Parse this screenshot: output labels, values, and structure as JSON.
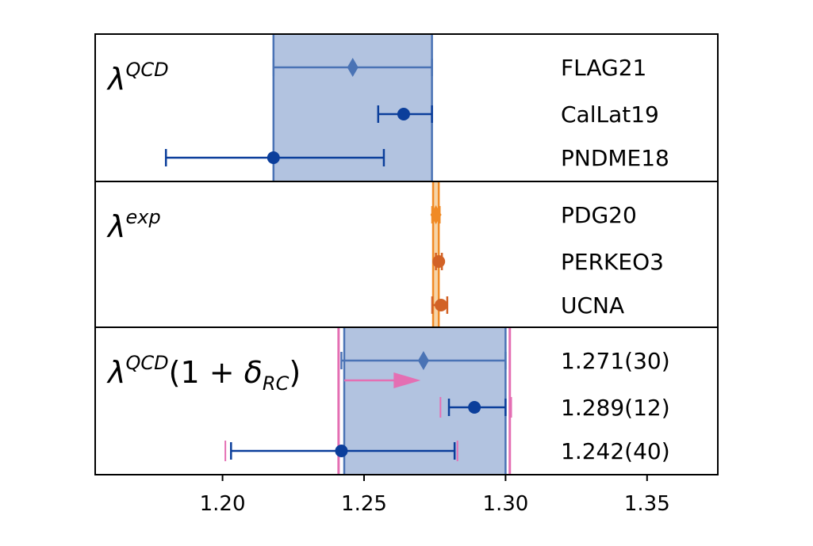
{
  "chart_data": {
    "type": "scatter",
    "subtype": "forest-plot with horizontal error bars, three stacked panels sharing one x-axis",
    "xlim": [
      1.155,
      1.375
    ],
    "x_ticks": [
      "1.20",
      "1.25",
      "1.30",
      "1.35"
    ],
    "x_tick_values": [
      1.2,
      1.25,
      1.3,
      1.35
    ],
    "grid": false,
    "panels": [
      {
        "label": {
          "base": "λ",
          "sup": "QCD",
          "rest": ""
        },
        "band": {
          "xmin": 1.218,
          "xmax": 1.274,
          "fill": "#b2c3e0",
          "edge": "#4a73b5"
        },
        "entries": [
          {
            "label": "FLAG21",
            "x": 1.246,
            "xerr_lo": 1.218,
            "xerr_hi": 1.274,
            "marker": "diamond",
            "color": "#4a73b5"
          },
          {
            "label": "CalLat19",
            "x": 1.264,
            "xerr_lo": 1.255,
            "xerr_hi": 1.274,
            "marker": "circle",
            "color": "#0b3e9b"
          },
          {
            "label": "PNDME18",
            "x": 1.218,
            "xerr_lo": 1.18,
            "xerr_hi": 1.257,
            "marker": "circle",
            "color": "#0b3e9b"
          }
        ]
      },
      {
        "label": {
          "base": "λ",
          "sup": "exp",
          "rest": ""
        },
        "band": {
          "xmin": 1.2744,
          "xmax": 1.2764,
          "fill": "#f6d4a7",
          "edge": "#f08a25"
        },
        "entries": [
          {
            "label": "PDG20",
            "x": 1.2754,
            "xerr_lo": 1.2741,
            "xerr_hi": 1.2767,
            "marker": "diamond",
            "color": "#f08a25"
          },
          {
            "label": "PERKEO3",
            "x": 1.2764,
            "xerr_lo": 1.2754,
            "xerr_hi": 1.2775,
            "marker": "circle",
            "color": "#d26226"
          },
          {
            "label": "UCNA",
            "x": 1.2772,
            "xerr_lo": 1.2741,
            "xerr_hi": 1.2794,
            "marker": "circle",
            "color": "#d26226"
          }
        ]
      },
      {
        "label": {
          "base": "λ",
          "sup": "QCD",
          "rest": "(1 + δ",
          "sub": "RC",
          "close": ")"
        },
        "band": {
          "xmin": 1.243,
          "xmax": 1.3,
          "fill": "#b2c3e0",
          "edge": "#4a73b5",
          "outer_edges": [
            1.241,
            1.3015
          ],
          "outer_color": "#e46fb3"
        },
        "entries": [
          {
            "label": "1.271(30)",
            "x": 1.271,
            "xerr_lo": 1.242,
            "xerr_hi": 1.3,
            "marker": "diamond",
            "color": "#4a73b5",
            "arrow": {
              "from": 1.243,
              "to": 1.27,
              "color": "#e46fb3"
            }
          },
          {
            "label": "1.289(12)",
            "x": 1.289,
            "xerr_lo": 1.28,
            "xerr_hi": 1.3,
            "marker": "circle",
            "color": "#0b3e9b",
            "pink_caps": [
              1.277,
              1.302
            ]
          },
          {
            "label": "1.242(40)",
            "x": 1.242,
            "xerr_lo": 1.203,
            "xerr_hi": 1.282,
            "marker": "circle",
            "color": "#0b3e9b",
            "pink_caps": [
              1.201,
              1.283
            ]
          }
        ]
      }
    ]
  }
}
